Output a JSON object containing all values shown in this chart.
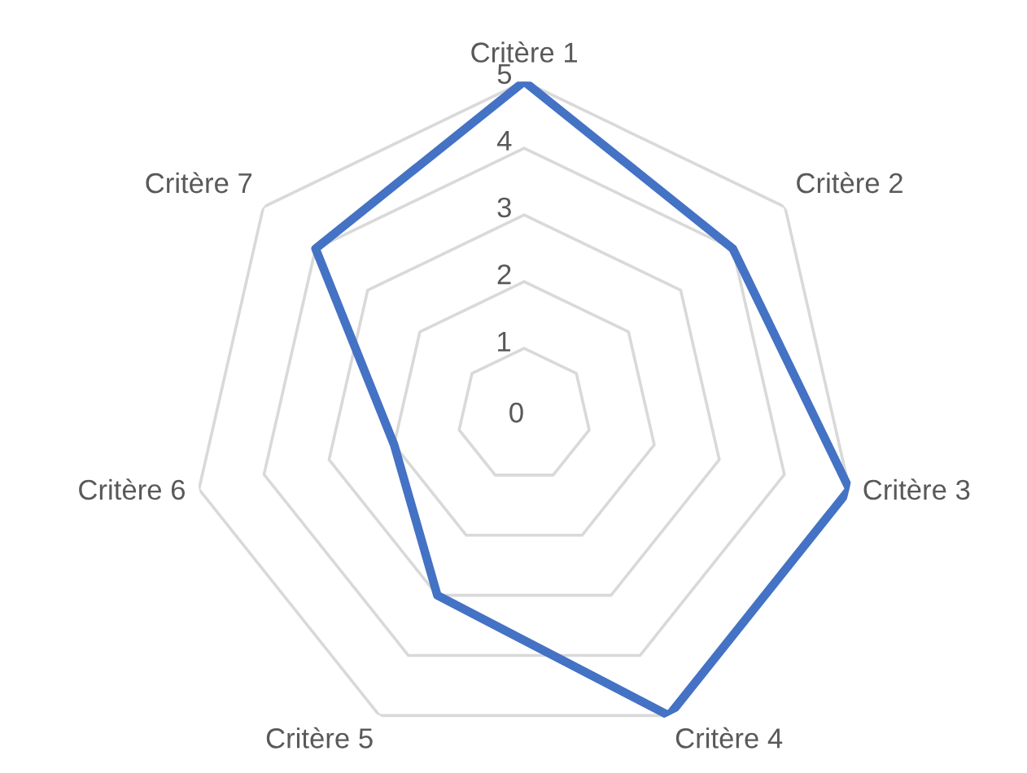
{
  "chart_data": {
    "type": "radar",
    "categories": [
      "Critère 1",
      "Critère 2",
      "Critère 3",
      "Critère 4",
      "Critère 5",
      "Critère 6",
      "Critère 7"
    ],
    "series": [
      {
        "color": "#4472c4",
        "values": [
          5,
          4,
          5,
          5,
          3,
          2,
          4
        ]
      }
    ],
    "ylim": [
      0,
      5
    ],
    "yticks": [
      0,
      1,
      2,
      3,
      4,
      5
    ],
    "grid": true
  }
}
